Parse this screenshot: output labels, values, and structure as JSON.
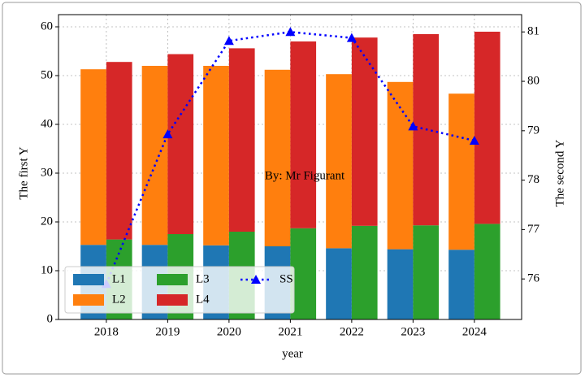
{
  "chart_data": {
    "type": "stacked-bar-line",
    "annotation": "By: Mr Figurant",
    "x_label": "year",
    "y_label": "The first Y",
    "y2_label": "The second Y",
    "x": [
      2018,
      2019,
      2020,
      2021,
      2022,
      2023,
      2024
    ],
    "xlim": [
      2017.22,
      2024.77
    ],
    "xticks": [
      2018,
      2019,
      2020,
      2021,
      2022,
      2023,
      2024
    ],
    "ylim": [
      0,
      62.5
    ],
    "yticks": [
      0,
      10,
      20,
      30,
      40,
      50,
      60
    ],
    "y2lim": [
      75.18,
      81.35
    ],
    "y2ticks": [
      76,
      77,
      78,
      79,
      80,
      81
    ],
    "grid": true,
    "legend": "lower left",
    "series": [
      {
        "name": "L1",
        "color": "#1f77b4",
        "stack": "left",
        "values": [
          15.3,
          15.3,
          15.2,
          15.0,
          14.6,
          14.4,
          14.3
        ]
      },
      {
        "name": "L2",
        "color": "#ff7f0e",
        "stack": "left",
        "values": [
          36.0,
          36.7,
          36.8,
          36.2,
          35.7,
          34.3,
          32.0
        ]
      },
      {
        "name": "L3",
        "color": "#2ca02c",
        "stack": "right",
        "values": [
          16.4,
          17.5,
          18.0,
          18.7,
          19.2,
          19.3,
          19.6
        ]
      },
      {
        "name": "L4",
        "color": "#d62728",
        "stack": "right",
        "values": [
          36.4,
          36.9,
          37.6,
          38.3,
          38.6,
          39.2,
          39.4
        ]
      },
      {
        "name": "SS",
        "color": "#0000ff",
        "axis": "y2",
        "linestyle": "dotted",
        "marker": "^",
        "values": [
          75.9,
          78.93,
          80.82,
          81.0,
          80.88,
          79.09,
          78.8
        ]
      }
    ]
  }
}
